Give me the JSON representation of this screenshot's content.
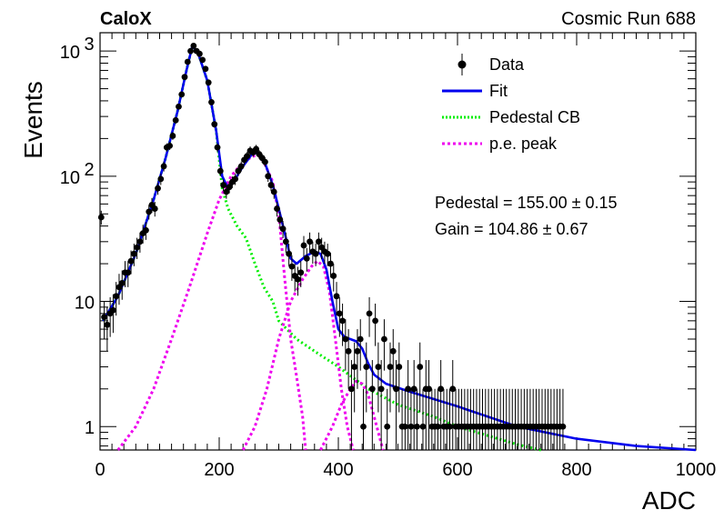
{
  "header": {
    "left_label": "CaloX",
    "right_label": "Cosmic Run 688"
  },
  "fit_results": {
    "pedestal": "Pedestal = 155.00 ± 0.15",
    "gain": "Gain = 104.86 ± 0.67"
  },
  "chart_data": {
    "type": "line",
    "xlabel": "ADC",
    "ylabel": "Events",
    "xlim": [
      0,
      1000
    ],
    "ylim": [
      0.65,
      1400
    ],
    "ylog": true,
    "grid": false,
    "legend_position": "top-right",
    "x_ticks": [
      "0",
      "200",
      "400",
      "600",
      "800",
      "1000"
    ],
    "y_ticks": [
      {
        "value": 1,
        "label": "1",
        "sup": ""
      },
      {
        "value": 10,
        "label": "10",
        "sup": ""
      },
      {
        "value": 100,
        "label": "10",
        "sup": "2"
      },
      {
        "value": 1000,
        "label": "10",
        "sup": "3"
      }
    ],
    "legend": [
      {
        "label": "Data",
        "style": "marker",
        "color": "#000000"
      },
      {
        "label": "Fit",
        "style": "solid",
        "color": "#0000ee"
      },
      {
        "label": "Pedestal CB",
        "style": "dotted",
        "color": "#00ee00"
      },
      {
        "label": "p.e. peak",
        "style": "dashed",
        "color": "#ee00ee"
      }
    ],
    "series": [
      {
        "name": "Data",
        "color": "#000000",
        "points": [
          [
            2,
            47,
            6
          ],
          [
            7,
            7.5,
            2.5
          ],
          [
            12,
            6.5,
            2.5
          ],
          [
            17,
            8,
            2.8
          ],
          [
            22,
            8.5,
            2.9
          ],
          [
            27,
            11,
            3.3
          ],
          [
            32,
            13,
            3.6
          ],
          [
            37,
            14,
            3.7
          ],
          [
            42,
            17,
            4
          ],
          [
            47,
            17,
            4
          ],
          [
            52,
            21,
            4.5
          ],
          [
            57,
            24,
            4.9
          ],
          [
            62,
            27,
            5.2
          ],
          [
            67,
            30,
            5.5
          ],
          [
            72,
            35,
            6
          ],
          [
            77,
            37,
            6
          ],
          [
            82,
            52,
            7
          ],
          [
            87,
            59,
            8
          ],
          [
            92,
            55,
            7.4
          ],
          [
            97,
            80,
            9
          ],
          [
            102,
            95,
            10
          ],
          [
            107,
            120,
            11
          ],
          [
            112,
            170,
            13
          ],
          [
            117,
            175,
            13
          ],
          [
            122,
            210,
            15
          ],
          [
            127,
            280,
            17
          ],
          [
            132,
            360,
            19
          ],
          [
            137,
            450,
            21
          ],
          [
            142,
            620,
            25
          ],
          [
            147,
            820,
            29
          ],
          [
            152,
            1000,
            32
          ],
          [
            157,
            1100,
            33
          ],
          [
            162,
            1000,
            32
          ],
          [
            167,
            950,
            31
          ],
          [
            172,
            850,
            29
          ],
          [
            177,
            720,
            27
          ],
          [
            182,
            560,
            24
          ],
          [
            187,
            390,
            20
          ],
          [
            192,
            260,
            16
          ],
          [
            197,
            170,
            13
          ],
          [
            202,
            110,
            10
          ],
          [
            207,
            85,
            9
          ],
          [
            212,
            75,
            9
          ],
          [
            217,
            82,
            9
          ],
          [
            222,
            90,
            9.5
          ],
          [
            227,
            95,
            10
          ],
          [
            232,
            110,
            10
          ],
          [
            237,
            120,
            11
          ],
          [
            242,
            135,
            12
          ],
          [
            247,
            145,
            12
          ],
          [
            252,
            160,
            13
          ],
          [
            257,
            155,
            12
          ],
          [
            262,
            165,
            13
          ],
          [
            267,
            150,
            12
          ],
          [
            272,
            140,
            12
          ],
          [
            277,
            130,
            11
          ],
          [
            282,
            100,
            10
          ],
          [
            287,
            85,
            9
          ],
          [
            292,
            75,
            9
          ],
          [
            297,
            55,
            7.4
          ],
          [
            302,
            45,
            7
          ],
          [
            307,
            38,
            6
          ],
          [
            312,
            30,
            5.5
          ],
          [
            317,
            24,
            4.9
          ],
          [
            322,
            19,
            4.4
          ],
          [
            327,
            16,
            4
          ],
          [
            332,
            15,
            3.9
          ],
          [
            337,
            17,
            4
          ],
          [
            342,
            28,
            5.3
          ],
          [
            347,
            22,
            4.7
          ],
          [
            352,
            30,
            5.5
          ],
          [
            357,
            25,
            5
          ],
          [
            362,
            24,
            4.9
          ],
          [
            367,
            30,
            5.5
          ],
          [
            372,
            27,
            5.2
          ],
          [
            377,
            25,
            5
          ],
          [
            382,
            24,
            4.9
          ],
          [
            387,
            20,
            4.5
          ],
          [
            392,
            16,
            4
          ],
          [
            397,
            11,
            3.3
          ],
          [
            402,
            8,
            2.8
          ],
          [
            407,
            7,
            2.6
          ],
          [
            412,
            5,
            2.2
          ],
          [
            417,
            4,
            2
          ],
          [
            422,
            2,
            1.4
          ],
          [
            427,
            3,
            1.7
          ],
          [
            432,
            4,
            2
          ],
          [
            437,
            5,
            2.2
          ],
          [
            442,
            1,
            1
          ],
          [
            447,
            3,
            1.7
          ],
          [
            452,
            8,
            2.8
          ],
          [
            457,
            2,
            1.4
          ],
          [
            462,
            7,
            2.6
          ],
          [
            467,
            3,
            1.7
          ],
          [
            472,
            2,
            1.4
          ],
          [
            477,
            5,
            2.2
          ],
          [
            482,
            1,
            1
          ],
          [
            487,
            3,
            1.7
          ],
          [
            492,
            4,
            2
          ],
          [
            497,
            2,
            1.4
          ],
          [
            502,
            3,
            1.7
          ],
          [
            507,
            1,
            1
          ],
          [
            512,
            1,
            1
          ],
          [
            517,
            2,
            1.4
          ],
          [
            522,
            1,
            1
          ],
          [
            527,
            2,
            1.4
          ],
          [
            532,
            1,
            1
          ],
          [
            537,
            3,
            1.7
          ],
          [
            542,
            1,
            1
          ],
          [
            547,
            2,
            1.4
          ],
          [
            552,
            2,
            1.4
          ],
          [
            557,
            1,
            1
          ],
          [
            562,
            1,
            1
          ],
          [
            567,
            1,
            1
          ],
          [
            572,
            2,
            1.4
          ],
          [
            577,
            1,
            1
          ],
          [
            582,
            1,
            1
          ],
          [
            587,
            1,
            1
          ],
          [
            592,
            2,
            1.4
          ],
          [
            597,
            1,
            1
          ],
          [
            602,
            1,
            1
          ],
          [
            607,
            1,
            1
          ],
          [
            612,
            1,
            1
          ],
          [
            617,
            1,
            1
          ],
          [
            622,
            1,
            1
          ],
          [
            627,
            1,
            1
          ],
          [
            632,
            1,
            1
          ],
          [
            637,
            1,
            1
          ],
          [
            642,
            1,
            1
          ],
          [
            647,
            1,
            1
          ],
          [
            652,
            1,
            1
          ],
          [
            657,
            1,
            1
          ],
          [
            662,
            1,
            1
          ],
          [
            667,
            1,
            1
          ],
          [
            672,
            1,
            1
          ],
          [
            677,
            1,
            1
          ],
          [
            682,
            1,
            1
          ],
          [
            687,
            1,
            1
          ],
          [
            692,
            1,
            1
          ],
          [
            697,
            1,
            1
          ],
          [
            702,
            1,
            1
          ],
          [
            707,
            1,
            1
          ],
          [
            712,
            1,
            1
          ],
          [
            717,
            1,
            1
          ],
          [
            722,
            1,
            1
          ],
          [
            727,
            1,
            1
          ],
          [
            732,
            1,
            1
          ],
          [
            737,
            1,
            1
          ],
          [
            742,
            1,
            1
          ],
          [
            747,
            1,
            1
          ],
          [
            752,
            1,
            1
          ],
          [
            757,
            1,
            1
          ],
          [
            762,
            1,
            1
          ],
          [
            767,
            1,
            1
          ],
          [
            772,
            1,
            1
          ],
          [
            777,
            1,
            1
          ]
        ]
      },
      {
        "name": "Fit",
        "color": "#0000ee",
        "points": [
          [
            5,
            7
          ],
          [
            30,
            11
          ],
          [
            60,
            24
          ],
          [
            90,
            65
          ],
          [
            110,
            140
          ],
          [
            130,
            330
          ],
          [
            145,
            700
          ],
          [
            155,
            1100
          ],
          [
            165,
            950
          ],
          [
            180,
            580
          ],
          [
            195,
            230
          ],
          [
            205,
            100
          ],
          [
            215,
            80
          ],
          [
            225,
            92
          ],
          [
            240,
            120
          ],
          [
            255,
            150
          ],
          [
            265,
            155
          ],
          [
            275,
            135
          ],
          [
            290,
            85
          ],
          [
            300,
            55
          ],
          [
            310,
            35
          ],
          [
            320,
            22
          ],
          [
            330,
            20
          ],
          [
            345,
            23
          ],
          [
            360,
            25
          ],
          [
            370,
            24
          ],
          [
            380,
            18
          ],
          [
            390,
            10
          ],
          [
            400,
            6
          ],
          [
            410,
            5.2
          ],
          [
            420,
            5
          ],
          [
            430,
            4.8
          ],
          [
            440,
            4.2
          ],
          [
            450,
            3.2
          ],
          [
            460,
            2.6
          ],
          [
            480,
            2.2
          ],
          [
            520,
            1.9
          ],
          [
            600,
            1.45
          ],
          [
            700,
            1.0
          ],
          [
            800,
            0.8
          ],
          [
            900,
            0.7
          ],
          [
            1000,
            0.62
          ]
        ]
      },
      {
        "name": "Pedestal CB",
        "color": "#00ee00",
        "points": [
          [
            5,
            7
          ],
          [
            30,
            11
          ],
          [
            60,
            24
          ],
          [
            90,
            65
          ],
          [
            110,
            140
          ],
          [
            130,
            330
          ],
          [
            145,
            700
          ],
          [
            155,
            1100
          ],
          [
            165,
            950
          ],
          [
            180,
            580
          ],
          [
            195,
            230
          ],
          [
            205,
            80
          ],
          [
            215,
            55
          ],
          [
            230,
            40
          ],
          [
            245,
            32
          ],
          [
            260,
            20
          ],
          [
            275,
            13
          ],
          [
            290,
            10
          ],
          [
            300,
            7
          ],
          [
            330,
            5
          ],
          [
            360,
            4
          ],
          [
            400,
            3
          ],
          [
            450,
            2
          ],
          [
            500,
            1.5
          ],
          [
            560,
            1.2
          ],
          [
            600,
            1.0
          ],
          [
            650,
            0.85
          ],
          [
            700,
            0.72
          ],
          [
            740,
            0.65
          ]
        ]
      },
      {
        "name": "p.e. peak",
        "color": "#ee00ee",
        "points": [
          [
            30,
            0.65
          ],
          [
            60,
            1.0
          ],
          [
            90,
            2
          ],
          [
            120,
            5
          ],
          [
            150,
            13
          ],
          [
            180,
            35
          ],
          [
            200,
            65
          ],
          [
            220,
            100
          ],
          [
            240,
            130
          ],
          [
            258,
            145
          ],
          [
            265,
            148
          ],
          [
            275,
            130
          ],
          [
            290,
            90
          ],
          [
            300,
            50
          ],
          [
            310,
            15
          ],
          [
            320,
            5
          ],
          [
            330,
            2.5
          ],
          [
            340,
            1.2
          ],
          [
            345,
            0.65
          ]
        ]
      },
      {
        "name": "p.e. peak 2",
        "color": "#ee00ee",
        "points": [
          [
            240,
            0.65
          ],
          [
            260,
            1.0
          ],
          [
            280,
            2
          ],
          [
            300,
            5
          ],
          [
            320,
            10
          ],
          [
            340,
            15
          ],
          [
            355,
            19
          ],
          [
            365,
            21
          ],
          [
            375,
            19
          ],
          [
            385,
            12
          ],
          [
            395,
            5
          ],
          [
            405,
            2
          ],
          [
            415,
            1.0
          ],
          [
            425,
            0.65
          ]
        ]
      },
      {
        "name": "p.e. peak 3",
        "color": "#ee00ee",
        "points": [
          [
            370,
            0.65
          ],
          [
            390,
            1.0
          ],
          [
            405,
            1.5
          ],
          [
            420,
            2
          ],
          [
            430,
            2.3
          ],
          [
            440,
            2.2
          ],
          [
            450,
            1.8
          ],
          [
            460,
            1.2
          ],
          [
            470,
            0.8
          ],
          [
            475,
            0.65
          ]
        ]
      }
    ]
  }
}
